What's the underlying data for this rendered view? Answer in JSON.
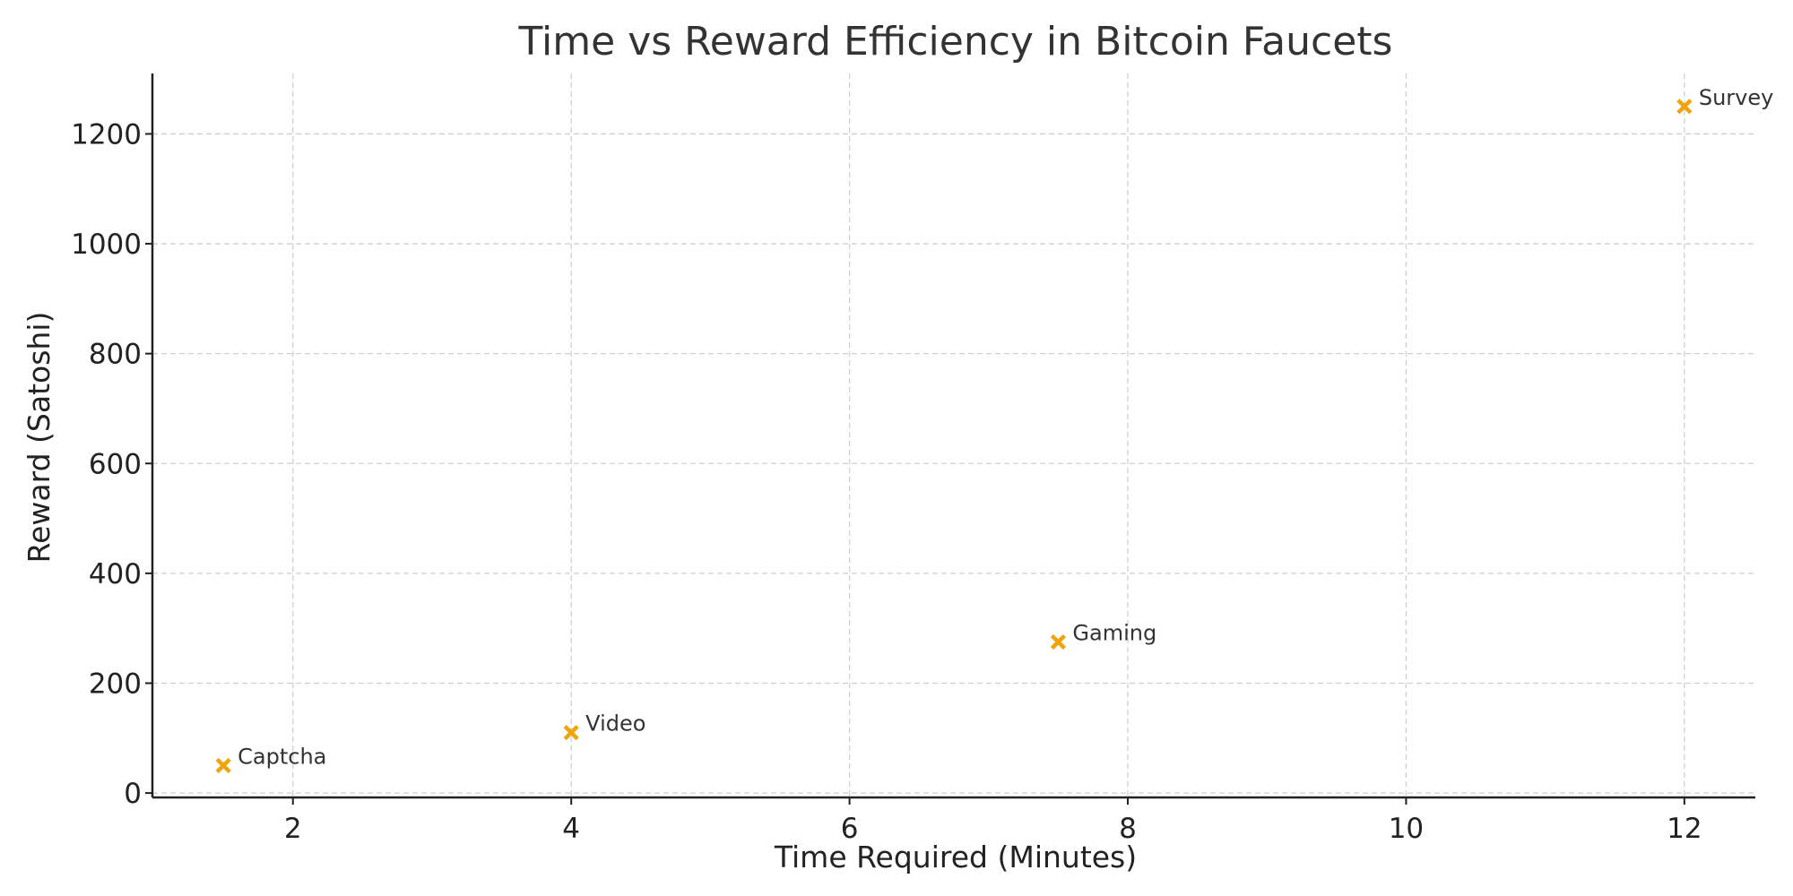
{
  "chart_data": {
    "type": "scatter",
    "title": "Time vs Reward Efficiency in Bitcoin Faucets",
    "xlabel": "Time Required (Minutes)",
    "ylabel": "Reward (Satoshi)",
    "xlim": [
      0.99,
      12.51
    ],
    "ylim": [
      -8,
      1310
    ],
    "xticks": [
      2,
      4,
      6,
      8,
      10,
      12
    ],
    "yticks": [
      0,
      200,
      400,
      600,
      800,
      1000,
      1200
    ],
    "grid": true,
    "marker": "x",
    "marker_color": "#f0a30a",
    "points": [
      {
        "label": "Captcha",
        "x": 1.5,
        "y": 50
      },
      {
        "label": "Video",
        "x": 4,
        "y": 110
      },
      {
        "label": "Gaming",
        "x": 7.5,
        "y": 275
      },
      {
        "label": "Survey",
        "x": 12,
        "y": 1250
      }
    ]
  }
}
